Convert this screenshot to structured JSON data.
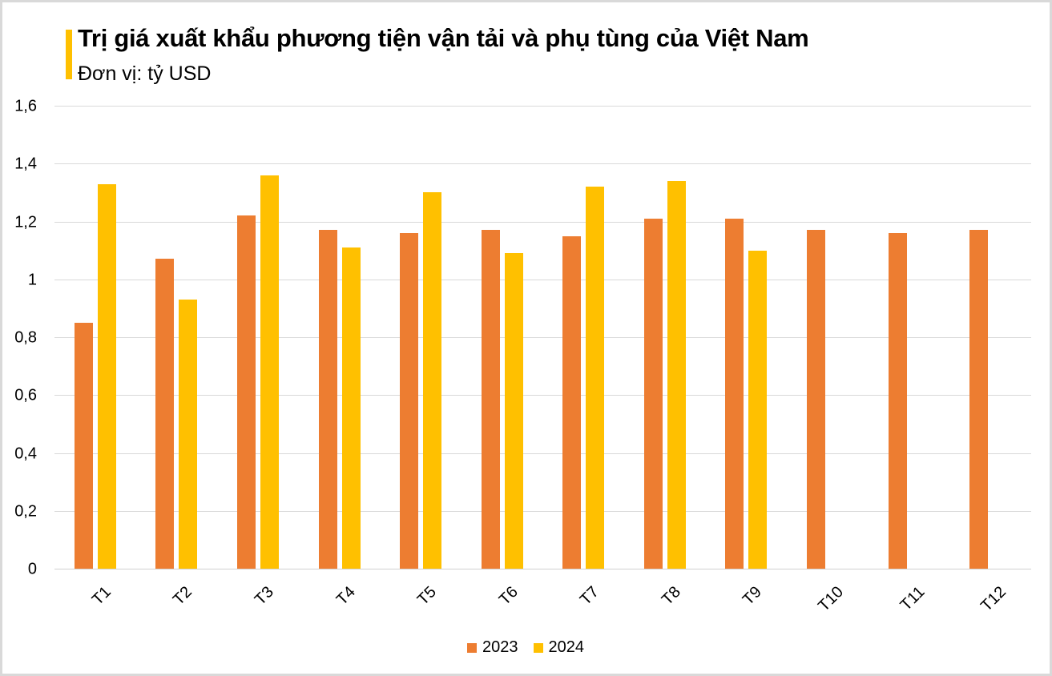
{
  "header": {
    "title": "Trị giá xuất khẩu phương tiện vận tải và phụ tùng của Việt Nam",
    "subtitle": "Đơn vị: tỷ USD",
    "accent_color": "#FFC000"
  },
  "colors": {
    "series_2023": "#ED7D31",
    "series_2024": "#FFC000",
    "gridline": "#D9D9D9"
  },
  "y_axis": {
    "ticks": [
      "0",
      "0,2",
      "0,4",
      "0,6",
      "0,8",
      "1",
      "1,2",
      "1,4",
      "1,6"
    ]
  },
  "x_axis": {
    "ticks": [
      "T1",
      "T2",
      "T3",
      "T4",
      "T5",
      "T6",
      "T7",
      "T8",
      "T9",
      "T10",
      "T11",
      "T12"
    ]
  },
  "legend": {
    "items": [
      {
        "label": "2023",
        "color": "#ED7D31"
      },
      {
        "label": "2024",
        "color": "#FFC000"
      }
    ]
  },
  "chart_data": {
    "type": "bar",
    "title": "Trị giá xuất khẩu phương tiện vận tải và phụ tùng của Việt Nam",
    "subtitle": "Đơn vị: tỷ USD",
    "xlabel": "",
    "ylabel": "",
    "ylim": [
      0,
      1.6
    ],
    "yticks": [
      0,
      0.2,
      0.4,
      0.6,
      0.8,
      1.0,
      1.2,
      1.4,
      1.6
    ],
    "grid": true,
    "legend_position": "bottom",
    "categories": [
      "T1",
      "T2",
      "T3",
      "T4",
      "T5",
      "T6",
      "T7",
      "T8",
      "T9",
      "T10",
      "T11",
      "T12"
    ],
    "series": [
      {
        "name": "2023",
        "color": "#ED7D31",
        "values": [
          0.85,
          1.07,
          1.22,
          1.17,
          1.16,
          1.17,
          1.15,
          1.21,
          1.21,
          1.17,
          1.16,
          1.17
        ]
      },
      {
        "name": "2024",
        "color": "#FFC000",
        "values": [
          1.33,
          0.93,
          1.36,
          1.11,
          1.3,
          1.09,
          1.32,
          1.34,
          1.1,
          null,
          null,
          null
        ]
      }
    ]
  }
}
